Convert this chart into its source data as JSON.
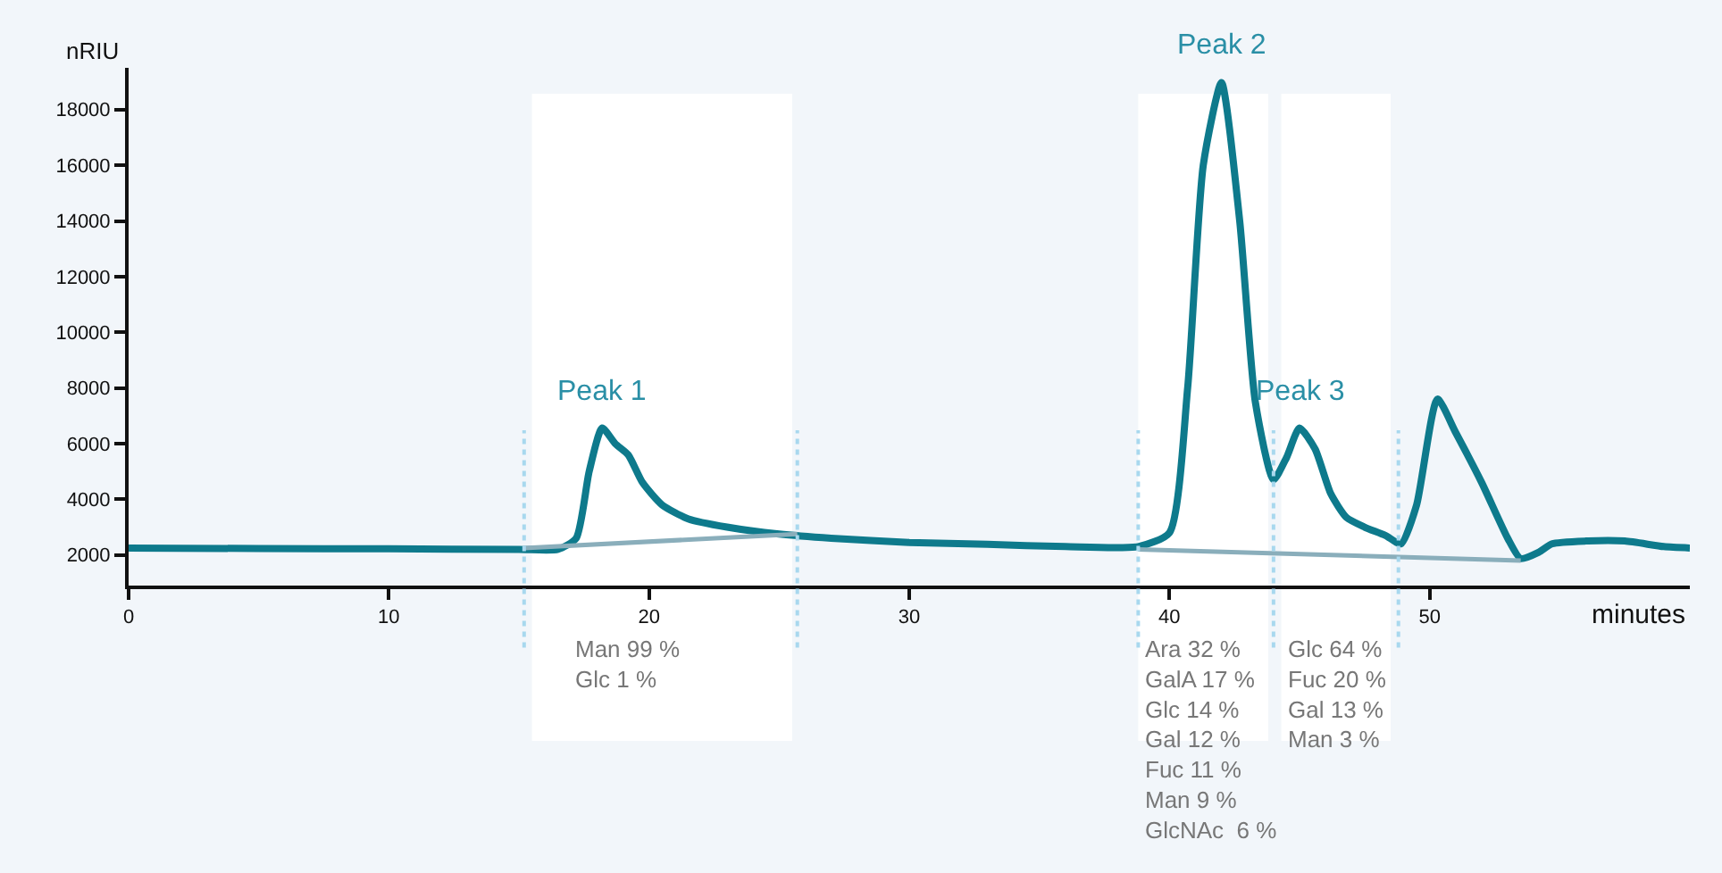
{
  "chart_data": {
    "type": "line",
    "xlabel": "minutes",
    "ylabel": "nRIU",
    "xlim": [
      0,
      60
    ],
    "ylim": [
      900,
      19500
    ],
    "xticks": [
      0,
      10,
      20,
      30,
      40,
      50
    ],
    "yticks": [
      2000,
      4000,
      6000,
      8000,
      10000,
      12000,
      14000,
      16000,
      18000
    ],
    "grid": false,
    "marker": "none",
    "line_style": "solid",
    "series": [
      {
        "color": "#0e7a8c",
        "x": [
          0,
          5,
          10,
          15,
          16.5,
          17.2,
          17.7,
          18.2,
          18.7,
          19.2,
          19.75,
          20.5,
          21.5,
          23,
          25,
          27,
          30,
          33,
          36,
          38.8,
          40,
          40.7,
          41.3,
          42,
          42.7,
          43.3,
          44,
          44.5,
          45,
          45.6,
          46.2,
          46.8,
          47.5,
          48.3,
          48.9,
          49.5,
          50.3,
          51,
          52,
          53,
          53.5,
          54.2,
          54.7,
          56,
          57.5,
          59,
          60
        ],
        "values": [
          2250,
          2230,
          2220,
          2200,
          2200,
          2600,
          5000,
          6560,
          6000,
          5600,
          4600,
          3800,
          3300,
          3000,
          2750,
          2600,
          2450,
          2380,
          2300,
          2300,
          2800,
          8000,
          16000,
          18970,
          14000,
          7500,
          4700,
          5500,
          6560,
          5800,
          4200,
          3350,
          3000,
          2700,
          2400,
          3800,
          7600,
          6400,
          4600,
          2600,
          1870,
          2100,
          2400,
          2500,
          2500,
          2300,
          2250
        ]
      },
      {
        "type": "line",
        "color": "#8aaebb",
        "x": [
          15.2,
          25.7
        ],
        "values": [
          2250,
          2750
        ]
      },
      {
        "type": "line",
        "color": "#8aaebb",
        "x": [
          38.8,
          53.5
        ],
        "values": [
          2200,
          1800
        ]
      }
    ],
    "bands": [
      {
        "axis": "x",
        "from": 15.5,
        "to": 25.5,
        "color": "#ffffff"
      },
      {
        "axis": "x",
        "from": 38.8,
        "to": 43.8,
        "color": "#ffffff"
      },
      {
        "axis": "x",
        "from": 44.3,
        "to": 48.5,
        "color": "#ffffff"
      }
    ],
    "ref_lines": [
      {
        "axis": "x",
        "value": 15.2,
        "color": "#a8d8ee",
        "line_style": "dotted"
      },
      {
        "axis": "x",
        "value": 25.7,
        "color": "#a8d8ee",
        "line_style": "dotted"
      },
      {
        "axis": "x",
        "value": 38.8,
        "color": "#a8d8ee",
        "line_style": "dotted"
      },
      {
        "axis": "x",
        "value": 44,
        "color": "#a8d8ee",
        "line_style": "dotted"
      },
      {
        "axis": "x",
        "value": 48.8,
        "color": "#a8d8ee",
        "line_style": "dotted"
      }
    ],
    "annotations": [
      {
        "text": "Peak 1",
        "x": 18.2,
        "y": 6560
      },
      {
        "text": "Peak 2",
        "x": 42,
        "y": 18970
      },
      {
        "text": "Peak 3",
        "x": 45,
        "y": 6560
      },
      "Man 99 %\nGlc 1 %",
      "Ara 32 %\nGalA 17 %\nGlc 14 %\nGal 12 %\nFuc 11 %\nMan 9 %\nGlcNAc  6 %",
      "Glc 64 %\nFuc 20 %\nGal 13 %\nMan 3 %"
    ]
  }
}
